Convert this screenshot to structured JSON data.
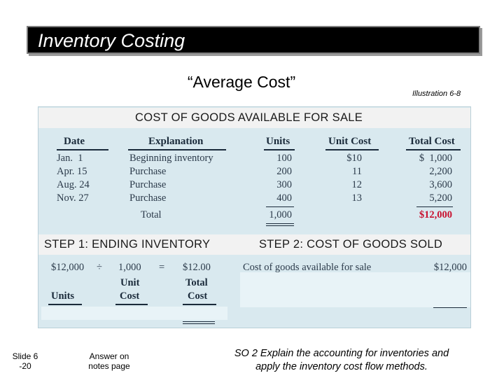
{
  "slide": {
    "title": "Inventory Costing",
    "subtitle": "“Average Cost”",
    "illustration": "Illustration 6-8"
  },
  "cogs_table": {
    "header": "COST OF GOODS AVAILABLE FOR SALE",
    "columns": [
      "Date",
      "Explanation",
      "Units",
      "Unit Cost",
      "Total Cost"
    ],
    "rows": [
      {
        "date": "Jan.  1",
        "explanation": "Beginning inventory",
        "units": "100",
        "unit_cost": "$10",
        "total_cost": "$  1,000"
      },
      {
        "date": "Apr. 15",
        "explanation": "Purchase",
        "units": "200",
        "unit_cost": "11",
        "total_cost": "2,200"
      },
      {
        "date": "Aug. 24",
        "explanation": "Purchase",
        "units": "300",
        "unit_cost": "12",
        "total_cost": "3,600"
      },
      {
        "date": "Nov. 27",
        "explanation": "Purchase",
        "units": "400",
        "unit_cost": "13",
        "total_cost": "5,200"
      }
    ],
    "total_label": "Total",
    "total_units": "1,000",
    "total_cost": "$12,000"
  },
  "step1": {
    "header": "STEP 1: ENDING INVENTORY",
    "amount": "$12,000",
    "divide": "÷",
    "units": "1,000",
    "equals": "=",
    "result": "$12.00",
    "label_units": "Units",
    "label_unit_cost_1": "Unit",
    "label_unit_cost_2": "Cost",
    "label_total_cost_1": "Total",
    "label_total_cost_2": "Cost"
  },
  "step2": {
    "header": "STEP 2: COST OF GOODS SOLD",
    "line_label": "Cost of goods available for sale",
    "line_value": "$12,000"
  },
  "footer": {
    "slide_num_1": "Slide 6",
    "slide_num_2": "-20",
    "note_1": "Answer on",
    "note_2": "notes page",
    "so_1": "SO 2  Explain the accounting for inventories and",
    "so_2": "apply the inventory cost flow methods."
  }
}
